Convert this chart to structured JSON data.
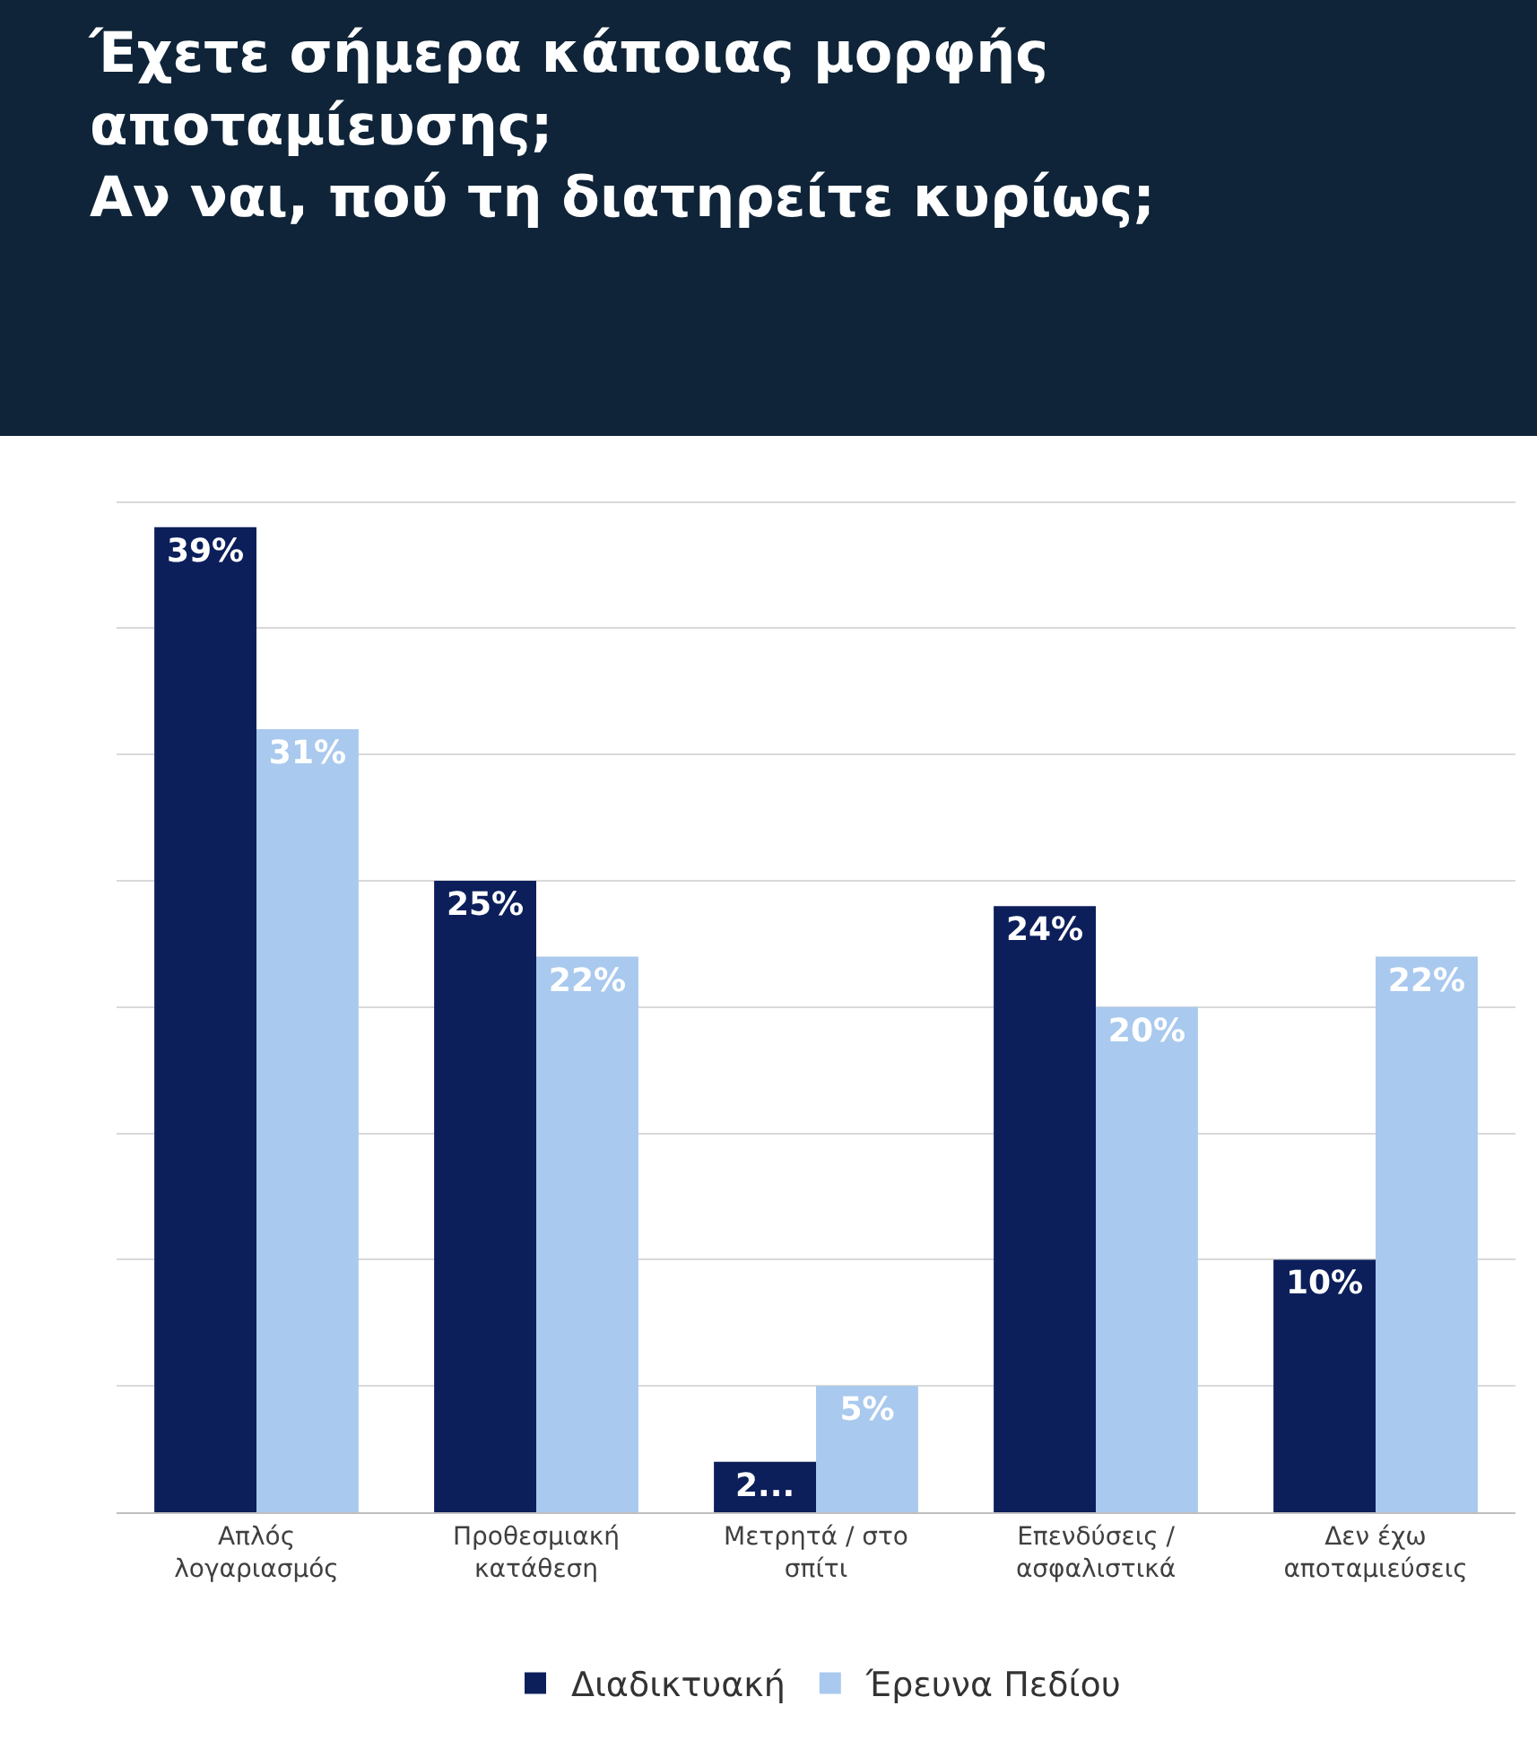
{
  "chart_data": {
    "type": "bar",
    "title": "Έχετε σήμερα κάποιας μορφής αποταμίευσης;\nΑν ναι, πού τη διατηρείτε κυρίως;",
    "categories": [
      "Απλός λογαριασμός",
      "Προθεσμιακή κατάθεση",
      "Μετρητά / στο σπίτι",
      "Επενδύσεις / ασφαλιστικά",
      "Δεν έχω αποταμιεύσεις"
    ],
    "series": [
      {
        "name": "Διαδικτυακή",
        "color": "#0c1f5b",
        "values": [
          39,
          25,
          2,
          24,
          10
        ],
        "value_labels": [
          "39%",
          "25%",
          "2...",
          "24%",
          "10%"
        ]
      },
      {
        "name": "Έρευνα Πεδίου",
        "color": "#a9c9ee",
        "values": [
          31,
          22,
          5,
          20,
          22
        ],
        "value_labels": [
          "31%",
          "22%",
          "5%",
          "20%",
          "22%"
        ]
      }
    ],
    "grid": "y",
    "legend": "bottom",
    "tick_labels": "x"
  }
}
